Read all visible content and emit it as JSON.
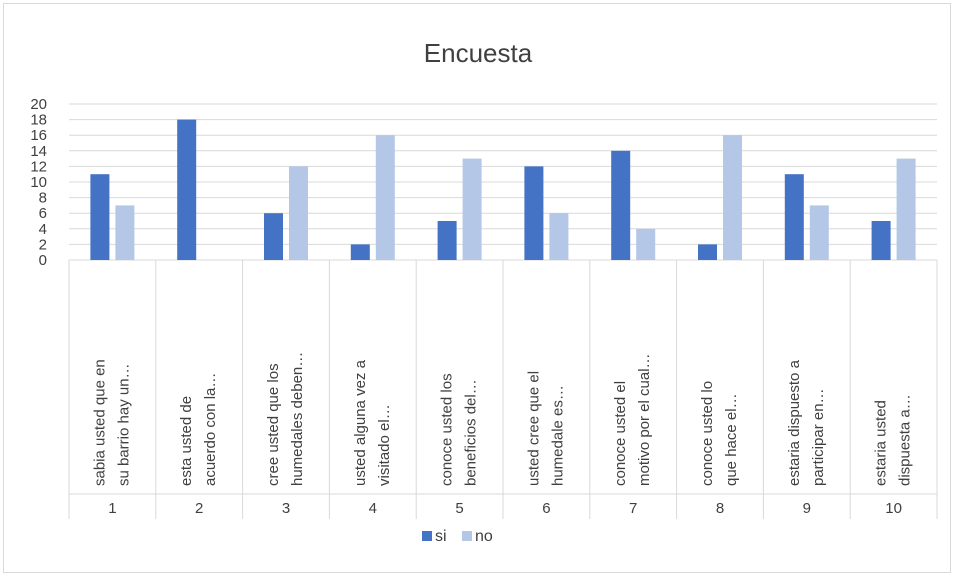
{
  "chart_data": {
    "type": "bar",
    "title": "Encuesta",
    "ylim": [
      0,
      20
    ],
    "yticks": [
      0,
      2,
      4,
      6,
      8,
      10,
      12,
      14,
      16,
      18,
      20
    ],
    "grid": true,
    "legend_position": "bottom",
    "categories": [
      "1",
      "2",
      "3",
      "4",
      "5",
      "6",
      "7",
      "8",
      "9",
      "10"
    ],
    "category_texts": [
      [
        "sabia usted que en",
        "su barrio hay un…"
      ],
      [
        "esta usted de",
        "acuerdo con la…"
      ],
      [
        "cree usted que los",
        "humedales deben…"
      ],
      [
        "usted alguna vez a",
        "visitado el…"
      ],
      [
        "conoce usted los",
        "beneficios del…"
      ],
      [
        "usted cree que el",
        "humedale es…"
      ],
      [
        "conoce usted el",
        "motivo por el cual…"
      ],
      [
        "conoce usted lo",
        "que hace el…"
      ],
      [
        "estaria dispuesto a",
        "participar en…"
      ],
      [
        "estaria usted",
        "dispuesta a…"
      ]
    ],
    "series": [
      {
        "name": "si",
        "color": "#4472c4",
        "values": [
          11,
          18,
          6,
          2,
          5,
          12,
          14,
          2,
          11,
          5
        ]
      },
      {
        "name": "no",
        "color": "#b4c7e7",
        "values": [
          7,
          0,
          12,
          16,
          13,
          6,
          4,
          16,
          7,
          13
        ]
      }
    ]
  }
}
